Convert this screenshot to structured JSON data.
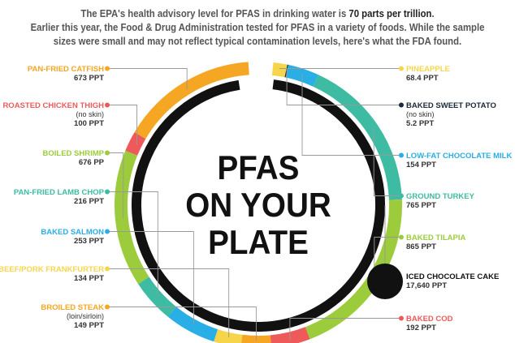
{
  "intro": {
    "line1_pre": "The EPA's health advisory level for PFAS in drinking water is ",
    "line1_highlight": "70 parts per trillion",
    "line1_post": ".",
    "line2": "Earlier this year, the Food & Drug Administration tested for PFAS in a variety of foods. While the sample",
    "line3": "sizes were small and may not reflect typical contamination levels, here's what the FDA found."
  },
  "chart_data": {
    "type": "pie",
    "title": "PFAS ON YOUR PLATE",
    "title_lines": [
      "PFAS",
      "ON YOUR",
      "PLATE"
    ],
    "unit": "PPT",
    "items": [
      {
        "name": "PINEAPPLE",
        "value_label": "68.4 PPT",
        "value": 68.4,
        "note": "",
        "color": "#f7d54a",
        "side": "right"
      },
      {
        "name": "BAKED SWEET POTATO",
        "value_label": "5.2 PPT",
        "value": 5.2,
        "note": "(no skin)",
        "color": "#1b2a3a",
        "side": "right"
      },
      {
        "name": "LOW-FAT CHOCOLATE MILK",
        "value_label": "154 PPT",
        "value": 154,
        "note": "",
        "color": "#29aee6",
        "side": "right"
      },
      {
        "name": "GROUND TURKEY",
        "value_label": "765 PPT",
        "value": 765,
        "note": "",
        "color": "#3dbba3",
        "side": "right"
      },
      {
        "name": "BAKED TILAPIA",
        "value_label": "865 PPT",
        "value": 865,
        "note": "",
        "color": "#9ccc3c",
        "side": "right"
      },
      {
        "name": "ICED CHOCOLATE CAKE",
        "value_label": "17,640 PPT",
        "value": 17640,
        "note": "",
        "color": "#111111",
        "side": "right"
      },
      {
        "name": "BAKED COD",
        "value_label": "192 PPT",
        "value": 192,
        "note": "",
        "color": "#ee5a5a",
        "side": "right"
      },
      {
        "name": "BROILED STEAK",
        "value_label": "149 PPT",
        "value": 149,
        "note": "(loin/sirloin)",
        "color": "#f5a623",
        "side": "left"
      },
      {
        "name": "BEEF/PORK FRANKFURTER",
        "value_label": "134 PPT",
        "value": 134,
        "note": "",
        "color": "#f7d54a",
        "side": "left"
      },
      {
        "name": "BAKED SALMON",
        "value_label": "253 PPT",
        "value": 253,
        "note": "",
        "color": "#29aee6",
        "side": "left"
      },
      {
        "name": "PAN-FRIED LAMB CHOP",
        "value_label": "216 PPT",
        "value": 216,
        "note": "",
        "color": "#3dbba3",
        "side": "left"
      },
      {
        "name": "BOILED SHRIMP",
        "value_label": "676 PP",
        "value": 676,
        "note": "",
        "color": "#9ccc3c",
        "side": "left"
      },
      {
        "name": "ROASTED CHICKEN THIGH",
        "value_label": "100 PPT",
        "value": 100,
        "note": "(no skin)",
        "color": "#ee5a5a",
        "side": "left"
      },
      {
        "name": "PAN-FRIED CATFISH",
        "value_label": "673 PPT",
        "value": 673,
        "note": "",
        "color": "#f5a623",
        "side": "left"
      }
    ]
  }
}
